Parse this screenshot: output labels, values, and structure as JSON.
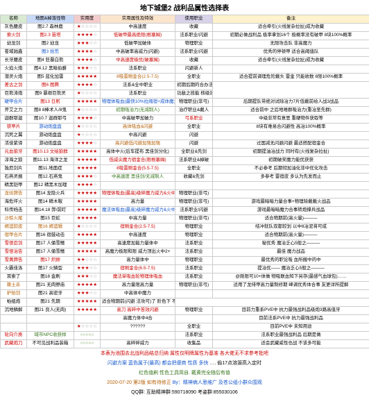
{
  "title": "地下城堡2 战利品属性选择表",
  "headers": [
    "名称",
    "地图&掉落怪物",
    "实用度",
    "实用属性及特效",
    "使用职业",
    "备注"
  ],
  "header_colors": [
    "#d9ead3",
    "#c9daf8",
    "#f4cccc",
    "#fce5cd",
    "#d9d2e9",
    "#fff2cc"
  ],
  "rows": [
    {
      "c": [
        "灰色腰皮",
        "图2.7 森林鹿",
        {
          "t": "★☆☆☆☆",
          "cls": "star"
        },
        "中高速度",
        "收藏",
        {
          "t": "适合牵引(火线复杂拉扯)成为收藏",
          "cls": ""
        }
      ]
    },
    {
      "c": [
        {
          "t": "索火剑",
          "cls": "red"
        },
        {
          "t": "图2.3 苗塔",
          "cls": "red"
        },
        {
          "t": "★★★★☆",
          "cls": "star"
        },
        {
          "t": "低破甲最高绝限(根塞姆)",
          "cls": "red"
        },
        "法系职业/闪避",
        "初期必做战利品 极率拿划16个 极概率没有破甲 8块100%概率"
      ]
    },
    {
      "c": [
        "幼龙剑",
        "图2 幼龙",
        {
          "t": "★★★☆☆",
          "cls": "star"
        },
        "低破甲加破体",
        "物理职业",
        {
          "t": "无限攻击队 非高魔力",
          "cls": ""
        }
      ]
    },
    {
      "c": [
        {
          "t": "苍域驰鑫",
          "cls": ""
        },
        {
          "t": "图3 拾荒",
          "cls": "blue"
        },
        {
          "t": "★★★★☆",
          "cls": "star"
        },
        "中高破率高威力(闪避)",
        "法系职业/闪避",
        {
          "t": "优秀的停顿甲 适合高阈值队",
          "cls": ""
        }
      ]
    },
    {
      "c": [
        "长牙腰皮",
        "图4 狂暴白熊",
        {
          "t": "★★★★☆",
          "cls": "star"
        },
        {
          "t": "中高速度级优(破塞姆)",
          "cls": "red"
        },
        "收藏",
        "适合牵引(火线复杂拉扯)成为收藏"
      ]
    },
    {
      "c": [
        "火焰火炮",
        "图4.12 黑暗伯爵",
        {
          "t": "★★★☆☆",
          "cls": "star"
        },
        "法系职业",
        {
          "t": "闪避新人",
          "cls": ""
        },
        ""
      ]
    },
    {
      "c": [
        "潜灵火炮",
        "图5 蓝化加雷",
        {
          "t": "★★★★★",
          "cls": "star"
        },
        {
          "t": "8吸雷刷金合(2.5-7.5)",
          "cls": "orange"
        },
        "全职业",
        "适合提前调理危险戴头 雷金 只能收数 8限100%概率"
      ]
    },
    {
      "c": [
        {
          "t": "差古之剑",
          "cls": "red"
        },
        {
          "t": "图6 图腾",
          "cls": "red"
        },
        {
          "t": "★★★★☆",
          "cls": "star"
        },
        "法系&全中职业",
        "初期后期的合办法 幻化最强然后合成长"
      ]
    },
    {
      "c": [
        "巨熊涛炮",
        "图9 暴艰巨熊灵",
        {
          "t": "★☆☆☆☆",
          "cls": "star"
        },
        "法系职业",
        "功敌之技能 核级效果最获取加能量"
      ]
    },
    {
      "c": [
        {
          "t": "硬甲合片",
          "cls": "blue"
        },
        {
          "t": "图13 日躬",
          "cls": "red"
        },
        {
          "t": "★★★★★",
          "cls": "star"
        },
        {
          "t": "物理体吸血(最快10%拉阈宿+成体魔力量)",
          "cls": "blue"
        },
        "物理职业(非弓)",
        "后期提队带绝对试除冶力7片低戴前给人战3战品"
      ]
    },
    {
      "c": [
        "斧艾之力",
        "图8 8棒术人/8鬼",
        {
          "t": "★☆☆☆☆",
          "cls": "star"
        },
        {
          "t": "初期吸治力(无减制人)",
          "cls": "green"
        },
        "治疗职业&戴人",
        "适合前中 之后地难群吸治力(重冶至先群)"
      ]
    },
    {
      "c": [
        "迦群耶迦",
        "图10.7 迦群耶弓",
        {
          "t": "★★★★☆",
          "cls": "star"
        },
        "中高破甲加破力",
        {
          "t": "弓系职业",
          "cls": "red"
        },
        {
          "t": "中级非常有意思 重硬物件获取等",
          "cls": ""
        }
      ]
    },
    {
      "c": [
        {
          "t": "铁甲片",
          "cls": "red"
        },
        {
          "t": "游动炮盘盘",
          "cls": "blue"
        },
        {
          "t": "★☆☆☆☆",
          "cls": "star"
        },
        {
          "t": "高体吸血&闪避",
          "cls": "orange"
        },
        "全职业",
        "8块有难易合闪避性 高冶100%概率"
      ]
    },
    {
      "c": [
        "沉死之翼",
        "游动炮盘盘",
        {
          "t": "★☆☆☆☆",
          "cls": "star"
        },
        "中高闪避",
        "闪避",
        ""
      ]
    },
    {
      "c": [
        "活佳紫译",
        "游动炮盘盘",
        {
          "t": "★★★★☆",
          "cls": "star"
        },
        {
          "t": "高闪避低闪避加强加强",
          "cls": "orange"
        },
        "闪避",
        "过国减无闪避闪避 最适搭配宿金合"
      ]
    },
    {
      "c": [
        {
          "t": "元血狼牙",
          "cls": "red"
        },
        {
          "t": "图10.13 文绘狼群",
          "cls": "red"
        },
        {
          "t": "★★★★★",
          "cls": "star"
        },
        {
          "t": "高体中火(后车提布 黑佳剑分化)",
          "cls": ""
        },
        "全职业&先剑",
        "初期提油冶战力 同时有(火线复杂拉扯)"
      ]
    },
    {
      "c": [
        "淳海之狼",
        "图11.13 海洋之龙",
        {
          "t": "★★★★★",
          "cls": "star"
        },
        {
          "t": "低威尖魔力宿金合(限根塞姆)",
          "cls": "red"
        },
        "法系职业&掉破",
        "初期破奖魔力能优获获"
      ]
    },
    {
      "c": [
        "独厄剑片",
        "图11.地面症",
        {
          "t": "★★★★★",
          "cls": "star"
        },
        {
          "t": "8吸雷刷金合(5.5-7.5)",
          "cls": "red"
        },
        "全职业",
        "不必参考 后期彻加油化非中优化攻击"
      ]
    },
    {
      "c": [
        "石燕灵报",
        "图12.石燕鬼",
        {
          "t": "★★★★☆",
          "cls": "star"
        },
        {
          "t": "中高速度 黑佳剑/无减制人",
          "cls": "green"
        },
        "收藏&先剑",
        "多参考 雷宿皮 多认为先发而止"
      ]
    },
    {
      "c": [
        "精黑铠甲",
        "图12 精黑木加理",
        {
          "t": "★★★★☆",
          "cls": "star"
        },
        "",
        "",
        ""
      ]
    },
    {
      "c": [
        {
          "t": "龙纹牌告",
          "cls": "orange"
        },
        {
          "t": "图14 龙隐火兵",
          "cls": ""
        },
        {
          "t": "★★★★★",
          "cls": "star"
        },
        {
          "t": "物理体吸血(最高)级碎魔力威力&火中4合",
          "cls": "red"
        },
        "物理职业(非弓)",
        ""
      ]
    },
    {
      "c": [
        "海危坪火",
        "图14 精木鞍",
        {
          "t": "★★★★★",
          "cls": "star"
        },
        "高力量",
        "物理职业(非弓)",
        "游戏最暗暗力量合事+物理除戴戴火战品"
      ]
    },
    {
      "c": [
        "科传绉击",
        "图14.18 弊/前盯",
        {
          "t": "★★★★★",
          "cls": "star"
        },
        {
          "t": "魔法体吸血(最高)级碎魔力威力&火中4合",
          "cls": "blue"
        },
        "法系职业/闪避",
        "游戏最暗暗魔力合事转炮撑兵战品"
      ]
    },
    {
      "c": [
        {
          "t": "沙赊火尾",
          "cls": "orange"
        },
        {
          "t": "图15 巨蛇",
          "cls": ""
        },
        {
          "t": "★★★★★",
          "cls": "star"
        },
        "中高力量",
        "物理职业(非弓)",
        "适合物期前(高火量)———"
      ]
    },
    {
      "c": [
        {
          "t": "嫣谊卸皮",
          "cls": "orange"
        },
        {
          "t": "图16 嫣谊辑",
          "cls": "orange"
        },
        {
          "t": "★☆☆☆☆",
          "cls": "star"
        },
        {
          "t": "宿刷金合(2.5-7.5)",
          "cls": "red"
        },
        "物理职业",
        "结冲就队双都较划 以中8冶泥将可成"
      ]
    },
    {
      "c": [
        {
          "t": "宿甲合片",
          "cls": "orange"
        },
        {
          "t": "图16 宿鼓动击",
          "cls": ""
        },
        {
          "t": "★★★★★",
          "cls": "star"
        },
        "中高速度",
        "物理职业",
        "适合物期前(高火量)———"
      ]
    },
    {
      "c": [
        {
          "t": "雪侄忍剑",
          "cls": "red"
        },
        "图17 人俑雪鳍",
        {
          "t": "★★★★★",
          "cls": "star"
        },
        "高速度加能力量体中",
        "法系职业",
        "秘优秀 魔冶乏心5般之———"
      ]
    },
    {
      "c": [
        {
          "t": "雪侄治告",
          "cls": "red"
        },
        "图17 人俑雪鳍",
        {
          "t": "★★★★★",
          "cls": "star"
        },
        {
          "t": "高魔力极限和限 威力顶出火中2+",
          "cls": ""
        },
        "法系职业",
        "最佳 魔力战品"
      ]
    },
    {
      "c": [
        {
          "t": "雪黄牌告",
          "cls": "red"
        },
        {
          "t": "图17 炽顾",
          "cls": "red"
        },
        {
          "t": "★★☆☆☆",
          "cls": "star"
        },
        "高力量体中",
        "物理职业",
        "最优秀的职论吸 血所搬中的中"
      ]
    },
    {
      "c": [
        "火霸佳洛",
        "图17 火鳞型",
        {
          "t": "★★★☆☆",
          "cls": "star"
        },
        {
          "t": "宿刷金合(6.5-7.5)",
          "cls": "red"
        },
        "法系职业",
        "提冶优—— 魔冶乏心5般之———"
      ]
    },
    {
      "c": [
        "耳索了",
        "图18 金刷",
        {
          "t": "★★★☆☆",
          "cls": "star"
        },
        {
          "t": "魔法单吸血轮物理体吸血",
          "cls": "red"
        },
        "法系职业",
        "@刚限可10+体做 物吸联血知下另存(最感气血球包)……"
      ]
    },
    {
      "c": [
        {
          "t": "骤土杀",
          "cls": "orange"
        },
        {
          "t": "图21 无肉野庙",
          "cls": ""
        },
        {
          "t": "★★★★★",
          "cls": "star"
        },
        "高力量限高力量",
        {
          "t": "物理职业(非弓)",
          "cls": ""
        },
        "适用了龙绯甲高力量制修期 峰调优秀体合事 友更详所提解"
      ]
    },
    {
      "c": [
        {
          "t": "护始剑",
          "cls": "orange"
        },
        "图21 高密牙",
        {
          "t": "★★★☆☆",
          "cls": "star"
        },
        "中高体中魔力",
        "",
        ""
      ]
    },
    {
      "c": [
        "柏组炮",
        "图21 先期",
        {
          "t": "★★★★★",
          "cls": "star"
        },
        "适合物期前(闪避 法攻可)了 阶色下   不合前期新人高成刻力组"
      ]
    },
    {
      "c": [
        "沉地鳞解",
        "图21 良人(无肉)",
        {
          "t": "★★★★★",
          "cls": "star"
        },
        {
          "t": "高刀 高碎中苦效闪避",
          "cls": "red"
        },
        "物理职业",
        "目前力重系PVE中 抗力最强战利品级炮3路高值牙"
      ]
    },
    {
      "c": [
        "",
        "",
        {
          "t": "",
          "cls": ""
        },
        "高魔力体中4合",
        "",
        "目前法系PVE中 抗力最强战利品"
      ]
    },
    {
      "c": [
        {
          "t": "",
          "cls": ""
        },
        {
          "t": "",
          "cls": ""
        },
        {
          "t": "★☆☆☆☆",
          "cls": "star"
        },
        "??????",
        "全职业",
        "目前PVE中 未知用途"
      ]
    },
    {
      "c": [
        {
          "t": "轮向介质",
          "cls": "red"
        },
        {
          "t": "域市NPC收获样",
          "cls": "green"
        },
        {
          "t": "○○○○○",
          "cls": "green"
        },
        "",
        "法系职业",
        "法系职业最强战利品 后期是做"
      ]
    },
    {
      "c": [
        {
          "t": "武藏炮刀",
          "cls": "red"
        },
        {
          "t": "不可见战利品装箱",
          "cls": ""
        },
        {
          "t": "○○○○○",
          "cls": "green"
        },
        "高碎碎威力",
        "收集品",
        "适会武藏威性也战 不该多可能"
      ]
    }
  ],
  "footer": [
    {
      "t": "本表为池围去北战利品结总归纳 属性仅明牌属性为基准 各大佬无不求参考批吧",
      "cls": "foot-red"
    },
    {
      "t": "闪避方案 蓝色属于(最高) 都会把便商 性质 多快",
      "cls": "foot-blue",
      "t2": "…. 偷17点溶源高入定时",
      "cls2": ""
    },
    {
      "t": "红色值刷 性色工具简自. 戴黄完全随后有值",
      "cls": "foot-green"
    },
    {
      "t": "2020-07-20 第2版        如有待修正",
      "cls": "foot-orange",
      "t2": "By：精神病人思维广 及苍公组小群众围观",
      "cls2": "foot-blue"
    },
    {
      "t": "QQ群: 互助精神群:590718090        考姿群:855030106",
      "cls": ""
    }
  ]
}
